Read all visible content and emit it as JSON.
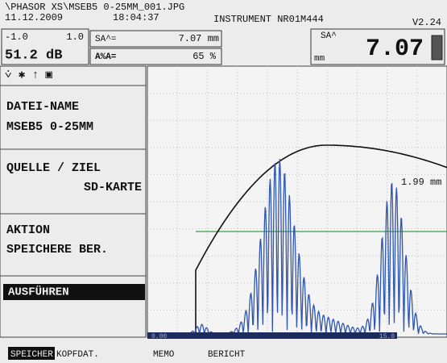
{
  "header": {
    "file": "\\PHASOR XS\\MSEB5 0-25MM_001.JPG",
    "date": "11.12.2009",
    "time": "18:04:37",
    "instrument": "INSTRUMENT NR01M444",
    "version": "V2.24"
  },
  "status": {
    "range_left": "-1.0",
    "range_right": "1.0",
    "gain": "51.2 dB",
    "field1_label": "SA^=",
    "field1_value": "7.07 mm",
    "field2_label": "A%A=",
    "field2_value": "65 %",
    "big_label": "SA^",
    "big_unit": "mm",
    "big_value": "7.07"
  },
  "menu": [
    {
      "title": "DATEI-NAME",
      "value": "MSEB5 0-25MM"
    },
    {
      "title": "QUELLE / ZIEL",
      "value": "SD-KARTE"
    },
    {
      "title": "AKTION",
      "value": "SPEICHERE BER."
    },
    {
      "title": "AUSFÜHREN"
    }
  ],
  "ascan": {
    "cursor_label": "1.99 mm",
    "start": "0.00",
    "end": "15.0"
  },
  "footer": [
    "SPEICHER",
    "KOPFDAT.",
    "MEMO",
    "BERICHT"
  ]
}
